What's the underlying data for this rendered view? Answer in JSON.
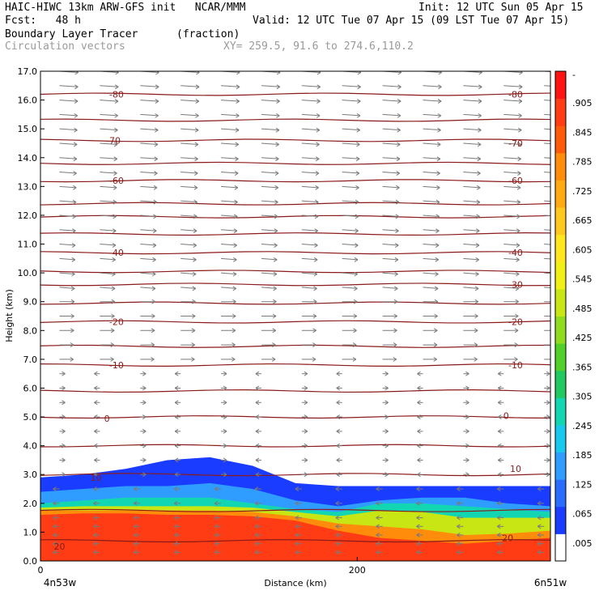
{
  "header": {
    "model_line": "HAIC-HIWC 13km ARW-GFS init   NCAR/MMM",
    "init_line": "Init: 12 UTC Sun 05 Apr 15",
    "fcst_line": "Fcst:   48 h",
    "valid_line": "Valid: 12 UTC Tue 07 Apr 15 (09 LST Tue 07 Apr 15)",
    "field_name": "Boundary Layer Tracer",
    "field_units": "(fraction)",
    "vector_label": "Circulation vectors",
    "xy_label": "XY= 259.5, 91.6 to 274.6,110.2"
  },
  "chart_data": {
    "type": "heatmap",
    "title": "Boundary Layer Tracer",
    "xlabel": "Distance (km)",
    "ylabel": "Height (km)",
    "xlim": [
      0,
      322
    ],
    "ylim": [
      0,
      17
    ],
    "x_ticks": [
      0,
      200
    ],
    "x_tick_labels": [
      "0",
      "200"
    ],
    "x_end_labels": [
      "4n53w",
      "6n51w"
    ],
    "y_ticks": [
      0,
      1,
      2,
      3,
      4,
      5,
      6,
      7,
      8,
      9,
      10,
      11,
      12,
      13,
      14,
      15,
      16,
      17
    ],
    "y_tick_labels": [
      "0.0",
      "1.0",
      "2.0",
      "3.0",
      "4.0",
      "5.0",
      "6.0",
      "7.0",
      "8.0",
      "9.0",
      "10.0",
      "11.0",
      "12.0",
      "13.0",
      "14.0",
      "15.0",
      "16.0",
      "17.0"
    ],
    "colorbar_labels": [
      ".005",
      ".065",
      ".125",
      ".185",
      ".245",
      ".305",
      ".365",
      ".425",
      ".485",
      ".545",
      ".605",
      ".665",
      ".725",
      ".785",
      ".845",
      ".905",
      "-"
    ],
    "colorbar_colors": [
      "#ffffff",
      "#1a3cff",
      "#2a6cff",
      "#2f9cff",
      "#19c8ee",
      "#12d6b2",
      "#22c860",
      "#52d02a",
      "#8fdc1e",
      "#c8e614",
      "#f0f014",
      "#ffe61e",
      "#ffc81e",
      "#ffaa14",
      "#ff8c0a",
      "#ff5a0a",
      "#ff3c14",
      "#ff1414"
    ],
    "isotherm_labels": [
      {
        "value": "-80",
        "x": 48,
        "y": 16.2
      },
      {
        "value": "-80",
        "x": 300,
        "y": 16.2
      },
      {
        "value": "-70",
        "x": 46,
        "y": 14.6
      },
      {
        "value": "-70",
        "x": 300,
        "y": 14.5
      },
      {
        "value": "-60",
        "x": 48,
        "y": 13.2
      },
      {
        "value": "-60",
        "x": 300,
        "y": 13.2
      },
      {
        "value": "-40",
        "x": 48,
        "y": 10.7
      },
      {
        "value": "-40",
        "x": 300,
        "y": 10.7
      },
      {
        "value": "-30",
        "x": 300,
        "y": 9.6
      },
      {
        "value": "-20",
        "x": 48,
        "y": 8.3
      },
      {
        "value": "-20",
        "x": 300,
        "y": 8.3
      },
      {
        "value": "-10",
        "x": 48,
        "y": 6.8
      },
      {
        "value": "-10",
        "x": 300,
        "y": 6.8
      },
      {
        "value": "0",
        "x": 42,
        "y": 4.95
      },
      {
        "value": "0",
        "x": 294,
        "y": 5.05
      },
      {
        "value": "10",
        "x": 35,
        "y": 2.9
      },
      {
        "value": "10",
        "x": 300,
        "y": 3.2
      },
      {
        "value": "20",
        "x": 12,
        "y": 0.5
      },
      {
        "value": "20",
        "x": 295,
        "y": 0.8
      }
    ],
    "isotherm_levels_km": [
      16.2,
      15.3,
      14.6,
      13.8,
      13.2,
      12.4,
      11.95,
      11.35,
      10.7,
      10.05,
      9.6,
      8.95,
      8.3,
      7.45,
      6.8,
      5.9,
      5.0,
      4.0,
      3.0,
      1.75,
      0.7
    ],
    "tracer_bands": [
      {
        "value": 0.05,
        "top_km": [
          2.9,
          3.0,
          3.2,
          3.5,
          3.6,
          3.3,
          2.7,
          2.6,
          2.6,
          2.6,
          2.6,
          2.6,
          2.6
        ]
      },
      {
        "value": 0.15,
        "top_km": [
          2.4,
          2.5,
          2.6,
          2.6,
          2.7,
          2.5,
          2.1,
          1.9,
          2.1,
          2.2,
          2.2,
          2.0,
          1.9
        ]
      },
      {
        "value": 0.3,
        "top_km": [
          2.0,
          2.1,
          2.2,
          2.2,
          2.2,
          2.0,
          1.8,
          1.7,
          2.0,
          2.0,
          1.9,
          1.8,
          1.7
        ]
      },
      {
        "value": 0.55,
        "top_km": [
          1.85,
          1.9,
          1.9,
          1.9,
          1.9,
          1.85,
          1.7,
          1.55,
          1.75,
          1.7,
          1.5,
          1.5,
          1.5
        ]
      },
      {
        "value": 0.8,
        "top_km": [
          1.75,
          1.75,
          1.75,
          1.75,
          1.75,
          1.7,
          1.55,
          1.3,
          1.2,
          1.1,
          0.9,
          0.95,
          1.05
        ]
      },
      {
        "value": 0.95,
        "top_km": [
          1.6,
          1.65,
          1.65,
          1.6,
          1.6,
          1.55,
          1.4,
          1.05,
          0.8,
          0.7,
          0.6,
          0.7,
          0.8
        ]
      }
    ],
    "band_x_km": [
      0,
      27,
      54,
      80,
      107,
      134,
      161,
      188,
      214,
      241,
      268,
      295,
      322
    ],
    "vector_rows_km": [
      0.3,
      0.6,
      0.9,
      1.2,
      1.5,
      2.0,
      2.5,
      3.0,
      3.5,
      4.0,
      4.5,
      5.0,
      5.5,
      6.0,
      6.5,
      7.0,
      7.5,
      8.0,
      8.5,
      9.0,
      9.5,
      10.0,
      10.5,
      11.0,
      11.5,
      12.0,
      12.5,
      13.0,
      13.5,
      14.0,
      14.5,
      15.0,
      15.5,
      16.0,
      16.5,
      17.0
    ]
  }
}
